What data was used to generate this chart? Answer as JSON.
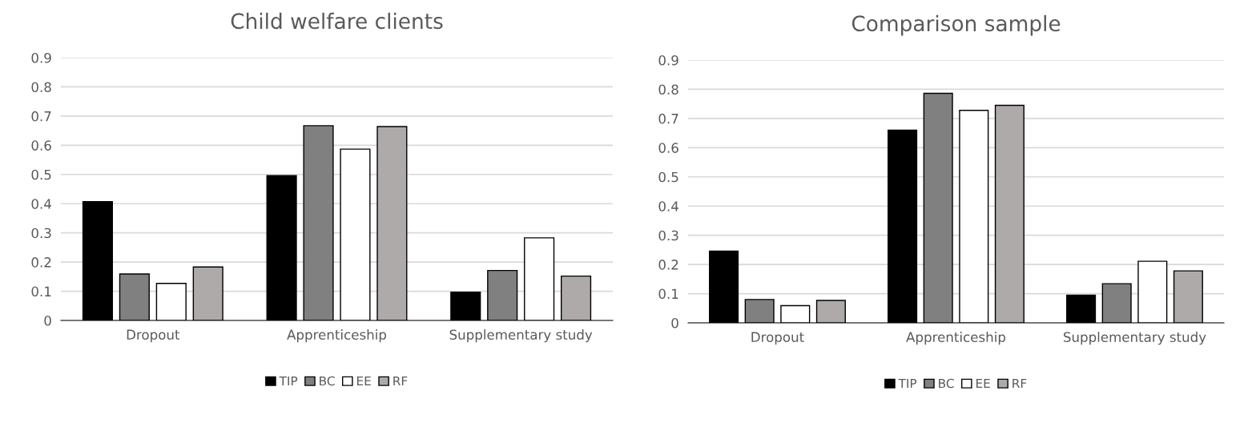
{
  "chart_data": [
    {
      "type": "bar",
      "title": "Child welfare clients",
      "categories": [
        "Dropout",
        "Apprenticeship",
        "Supplementary study"
      ],
      "series": [
        {
          "name": "TIP",
          "color": "#000000",
          "values": [
            0.407,
            0.496,
            0.097
          ]
        },
        {
          "name": "BC",
          "color": "#808080",
          "values": [
            0.159,
            0.667,
            0.171
          ]
        },
        {
          "name": "EE",
          "color": "#ffffff",
          "values": [
            0.127,
            0.587,
            0.283
          ]
        },
        {
          "name": "RF",
          "color": "#aeaaaa",
          "values": [
            0.183,
            0.664,
            0.152
          ]
        }
      ],
      "ylim": [
        0,
        0.9
      ],
      "yticks": [
        {
          "value": 0,
          "label": "0"
        },
        0.1,
        0.2,
        0.3,
        0.4,
        0.5,
        0.6,
        0.7,
        0.8,
        0.9
      ],
      "grid": "y",
      "legend": "bottom"
    },
    {
      "type": "bar",
      "title": "Comparison sample",
      "categories": [
        "Dropout",
        "Apprenticeship",
        "Supplementary study"
      ],
      "series": [
        {
          "name": "TIP",
          "color": "#000000",
          "values": [
            0.246,
            0.66,
            0.095
          ]
        },
        {
          "name": "BC",
          "color": "#808080",
          "values": [
            0.08,
            0.786,
            0.134
          ]
        },
        {
          "name": "EE",
          "color": "#ffffff",
          "values": [
            0.059,
            0.728,
            0.211
          ]
        },
        {
          "name": "RF",
          "color": "#aeaaaa",
          "values": [
            0.077,
            0.745,
            0.178
          ]
        }
      ],
      "ylim": [
        0,
        0.9
      ],
      "yticks": [
        {
          "value": 0,
          "label": "0"
        },
        0.1,
        0.2,
        0.3,
        0.4,
        0.5,
        0.6,
        0.7,
        0.8,
        0.9
      ],
      "grid": "y",
      "legend": "bottom"
    }
  ]
}
